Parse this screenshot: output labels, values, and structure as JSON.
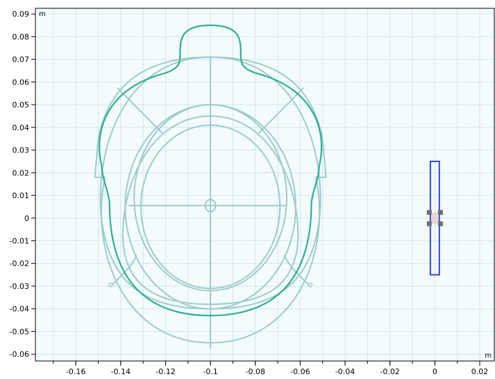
{
  "view": {
    "x_unit": "m",
    "y_unit": "m",
    "x_range": [
      -0.178,
      0.0265
    ],
    "y_range": [
      -0.063,
      0.0925
    ],
    "x_ticks": [
      -0.16,
      -0.14,
      -0.12,
      -0.1,
      -0.08,
      -0.06,
      -0.04,
      -0.02,
      0,
      0.02
    ],
    "y_ticks": [
      -0.06,
      -0.05,
      -0.04,
      -0.03,
      -0.02,
      -0.01,
      0,
      0.01,
      0.02,
      0.03,
      0.04,
      0.05,
      0.06,
      0.07,
      0.08,
      0.09
    ],
    "x_tick_labels": [
      "-0.16",
      "-0.14",
      "-0.12",
      "-0.1",
      "-0.08",
      "-0.06",
      "-0.04",
      "-0.02",
      "0",
      "0.02"
    ],
    "y_tick_labels": [
      "-0.06",
      "-0.05",
      "-0.04",
      "-0.03",
      "-0.02",
      "-0.01",
      "0",
      "0.01",
      "0.02",
      "0.03",
      "0.04",
      "0.05",
      "0.06",
      "0.07",
      "0.08",
      "0.09"
    ],
    "grid": true,
    "colors": {
      "background": "#f4fbfd",
      "grid": "#cfe6ee",
      "geometry": "#9ccbc9",
      "head_outline": "#2eae94",
      "coil": "#2d46d8",
      "coil_nodes": "#6e6e6e"
    }
  }
}
